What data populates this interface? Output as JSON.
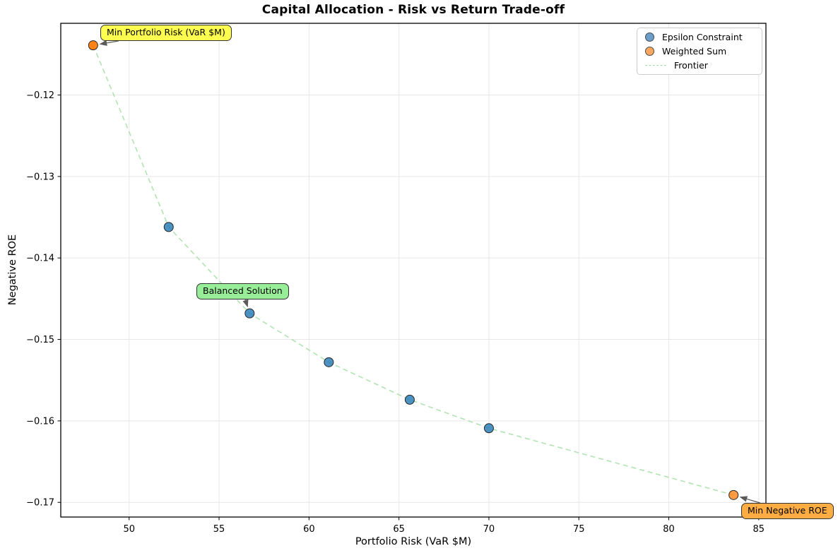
{
  "figure": {
    "title": "Capital Allocation - Risk vs Return Trade-off",
    "xlabel": "Portfolio Risk (VaR $M)",
    "ylabel": "Negative ROE"
  },
  "legend": {
    "position": "upper right",
    "items": [
      {
        "label": "Epsilon Constraint",
        "marker": "circle-icon",
        "color": "#6b9ec9"
      },
      {
        "label": "Weighted Sum",
        "marker": "circle-icon",
        "color": "#fba85e"
      },
      {
        "label": "Frontier",
        "marker": "dashed-line-icon",
        "color": "#9fdc9f"
      }
    ]
  },
  "annotations": [
    {
      "id": "min-risk",
      "label": "Min Portfolio Risk (VaR $M)",
      "bg": "#ffff4f",
      "target": [
        48.0,
        -0.1139
      ]
    },
    {
      "id": "balanced",
      "label": "Balanced Solution",
      "bg": "#98ee98",
      "target": [
        56.7,
        -0.1468
      ]
    },
    {
      "id": "min-roe",
      "label": "Min Negative ROE",
      "bg": "#ffad42",
      "target": [
        83.6,
        -0.1691
      ]
    }
  ],
  "chart_data": {
    "type": "scatter",
    "title": "Capital Allocation - Risk vs Return Trade-off",
    "xlabel": "Portfolio Risk (VaR $M)",
    "ylabel": "Negative ROE",
    "grid": true,
    "legend_position": "upper right",
    "xlim": [
      46.2,
      85.4
    ],
    "ylim": [
      -0.1718,
      -0.1112
    ],
    "x_ticks": [
      {
        "v": 50,
        "label": "50"
      },
      {
        "v": 55,
        "label": "55"
      },
      {
        "v": 60,
        "label": "60"
      },
      {
        "v": 65,
        "label": "65"
      },
      {
        "v": 70,
        "label": "70"
      },
      {
        "v": 75,
        "label": "75"
      },
      {
        "v": 80,
        "label": "80"
      },
      {
        "v": 85,
        "label": "85"
      }
    ],
    "y_ticks": [
      {
        "v": -0.12,
        "label": "−0.12"
      },
      {
        "v": -0.13,
        "label": "−0.13"
      },
      {
        "v": -0.14,
        "label": "−0.14"
      },
      {
        "v": -0.15,
        "label": "−0.15"
      },
      {
        "v": -0.16,
        "label": "−0.16"
      },
      {
        "v": -0.17,
        "label": "−0.17"
      }
    ],
    "series": [
      {
        "name": "Epsilon Constraint",
        "color": "#1f77b4",
        "edge_color": "#262626",
        "opacity": 0.8,
        "radius": 6.5,
        "points": [
          [
            52.2,
            -0.1362
          ],
          [
            56.7,
            -0.1468
          ],
          [
            61.1,
            -0.1528
          ],
          [
            65.6,
            -0.1574
          ],
          [
            70.0,
            -0.1609
          ]
        ]
      },
      {
        "name": "Weighted Sum",
        "color": "#ff7f0e",
        "edge_color": "#262626",
        "opacity": 0.8,
        "radius": 6.5,
        "point_opacity": [
          0.97,
          0.78
        ],
        "points": [
          [
            48.0,
            -0.1139
          ],
          [
            83.6,
            -0.1691
          ]
        ]
      }
    ],
    "frontier": {
      "name": "Frontier",
      "color": "#9fdc9f",
      "dash": "7 5",
      "points": [
        [
          48.0,
          -0.1139
        ],
        [
          52.2,
          -0.1362
        ],
        [
          56.7,
          -0.1468
        ],
        [
          61.1,
          -0.1528
        ],
        [
          65.6,
          -0.1574
        ],
        [
          70.0,
          -0.1609
        ],
        [
          83.6,
          -0.1691
        ]
      ]
    }
  }
}
